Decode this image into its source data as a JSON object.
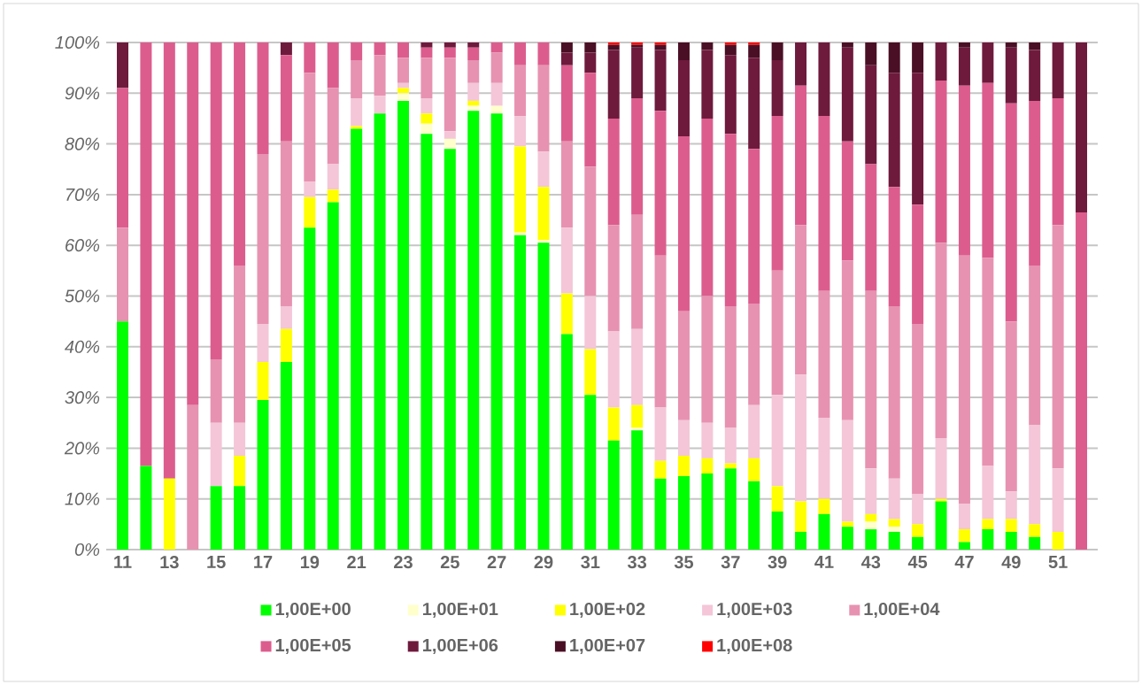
{
  "chart_data": {
    "type": "bar",
    "stacked": true,
    "grid": "y",
    "legend": "bottom",
    "categories": [
      "11",
      null,
      "13",
      null,
      "15",
      null,
      "17",
      null,
      "19",
      null,
      "21",
      null,
      "23",
      null,
      "25",
      null,
      "27",
      null,
      "29",
      null,
      "31",
      null,
      "33",
      null,
      "35",
      null,
      "37",
      null,
      "39",
      null,
      "41",
      null,
      "43",
      null,
      "45",
      null,
      "47",
      null,
      "49",
      null,
      "51",
      null
    ],
    "ylim": [
      0,
      100
    ],
    "yticks": [
      {
        "value": 0,
        "label": "0%"
      },
      {
        "value": 10,
        "label": "10%"
      },
      {
        "value": 20,
        "label": "20%"
      },
      {
        "value": 30,
        "label": "30%"
      },
      {
        "value": 40,
        "label": "40%"
      },
      {
        "value": 50,
        "label": "50%"
      },
      {
        "value": 60,
        "label": "60%"
      },
      {
        "value": 70,
        "label": "70%"
      },
      {
        "value": 80,
        "label": "80%"
      },
      {
        "value": 90,
        "label": "90%"
      },
      {
        "value": 100,
        "label": "100%"
      }
    ],
    "series": [
      {
        "name": "1,00E+00",
        "color": "#00ff00",
        "values": [
          45,
          16.5,
          0,
          0,
          12.5,
          12.5,
          29.5,
          37,
          63.5,
          68.5,
          83,
          86,
          88.5,
          82,
          79,
          86.5,
          86,
          62,
          60.5,
          42.5,
          30.5,
          21.5,
          23.5,
          14,
          14.5,
          15,
          16,
          13.5,
          7.5,
          3.5,
          7,
          4.5,
          4,
          3.5,
          2.5,
          9.5,
          1.5,
          4,
          3.5,
          2.5,
          0,
          0
        ]
      },
      {
        "name": "1,00E+01",
        "color": "#ffffcc",
        "values": [
          0,
          0,
          0,
          0,
          0,
          0,
          0,
          0,
          0,
          0,
          0,
          0,
          1.5,
          2,
          2,
          1,
          1.5,
          0.5,
          0.5,
          0,
          0,
          0,
          0.5,
          0,
          0,
          0,
          0,
          0,
          0,
          0,
          0,
          0,
          1.5,
          1,
          0,
          0,
          0,
          0,
          0,
          0,
          0,
          0
        ]
      },
      {
        "name": "1,00E+02",
        "color": "#ffff00",
        "values": [
          0,
          0,
          14,
          0,
          0,
          6,
          7.5,
          6.5,
          6,
          2.5,
          0.5,
          0,
          1,
          2,
          0,
          1,
          0,
          17,
          10.5,
          8,
          9,
          6.5,
          4.5,
          3.5,
          4,
          3,
          1,
          4.5,
          5,
          6,
          3,
          1,
          1.5,
          1.5,
          2.5,
          0.5,
          2.5,
          2,
          2.5,
          2.5,
          3.5,
          0
        ]
      },
      {
        "name": "1,00E+03",
        "color": "#f4c6d8",
        "values": [
          0,
          0,
          0,
          0,
          12.5,
          6.5,
          7.5,
          4.5,
          3,
          5,
          5.5,
          3.5,
          1,
          3,
          1.5,
          3.5,
          4.5,
          6,
          7,
          13,
          10.5,
          15,
          15,
          10.5,
          7,
          7,
          7,
          10.5,
          18,
          25,
          16,
          20,
          9,
          8,
          6,
          12,
          5,
          10.5,
          5.5,
          19.5,
          12.5,
          0
        ]
      },
      {
        "name": "1,00E+04",
        "color": "#e792b1",
        "values": [
          18.5,
          0,
          0,
          28.5,
          12.5,
          31,
          33.5,
          32.5,
          21.5,
          15,
          7.5,
          8,
          5,
          8,
          14.5,
          4.5,
          6,
          10,
          17,
          17,
          25.5,
          21,
          22.5,
          30,
          21.5,
          25,
          24,
          20,
          24.5,
          29.5,
          25,
          31.5,
          35,
          34,
          33.5,
          38.5,
          49,
          41,
          33.5,
          31.5,
          48,
          0
        ]
      },
      {
        "name": "1,00E+05",
        "color": "#dc5d8d",
        "values": [
          27.5,
          83.5,
          86,
          71.5,
          62.5,
          44,
          22,
          17,
          6,
          9,
          3.5,
          2.5,
          3,
          2,
          2,
          2.5,
          2,
          4.5,
          4.5,
          15,
          18.5,
          21,
          23,
          28.5,
          34.5,
          35,
          34,
          30.5,
          30.5,
          27.5,
          34.5,
          23.5,
          25,
          23.5,
          23.5,
          32,
          33.5,
          34.5,
          43,
          32.5,
          25,
          66.5
        ]
      },
      {
        "name": "1,00E+06",
        "color": "#6e1a3c",
        "values": [
          9,
          0,
          0,
          0,
          0,
          0,
          0,
          2.5,
          0,
          0,
          0,
          0,
          0,
          1,
          1,
          1,
          0,
          0,
          0,
          2.5,
          4,
          13.5,
          10,
          12,
          15,
          13.5,
          15.5,
          18,
          11,
          8.5,
          14.5,
          18.5,
          19.5,
          22.5,
          26,
          7.5,
          7.5,
          8,
          11,
          10,
          11,
          33.5
        ]
      },
      {
        "name": "1,00E+07",
        "color": "#4a0f25",
        "values": [
          0,
          0,
          0,
          0,
          0,
          0,
          0,
          0,
          0,
          0,
          0,
          0,
          0,
          0,
          0,
          0,
          0,
          0,
          0,
          2,
          2,
          1,
          0.5,
          1,
          3.5,
          1.5,
          2,
          2.5,
          3.5,
          0,
          0,
          1,
          4.5,
          6,
          6,
          0,
          1,
          0,
          1,
          1.5,
          0,
          0
        ]
      },
      {
        "name": "1,00E+08",
        "color": "#ff0000",
        "values": [
          0,
          0,
          0,
          0,
          0,
          0,
          0,
          0,
          0,
          0,
          0,
          0,
          0,
          0,
          0,
          0,
          0,
          0,
          0,
          0,
          0,
          0.5,
          0.5,
          0.5,
          0,
          0,
          0.5,
          0.5,
          0,
          0,
          0,
          0,
          0,
          0,
          0,
          0,
          0,
          0,
          0,
          0,
          0,
          0
        ]
      }
    ]
  }
}
